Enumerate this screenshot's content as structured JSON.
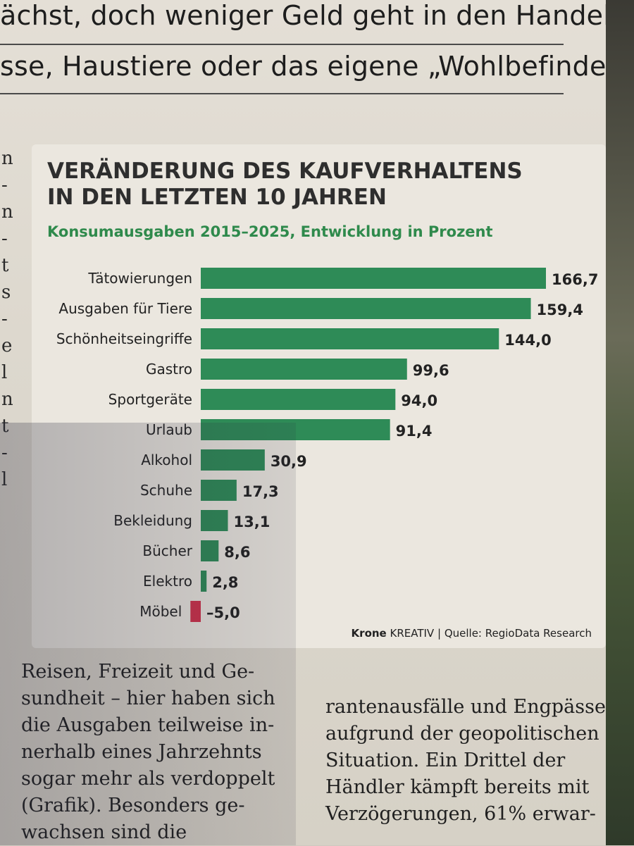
{
  "headline": {
    "line1": "ächst, doch weniger Geld geht in den Handel:",
    "line2": "sse, Haustiere oder das eigene „Wohlbefinden“"
  },
  "left_column_fragments": [
    "n",
    "-",
    "n",
    "-",
    "t",
    "s",
    "-",
    "e",
    "l",
    "n",
    "t",
    "-",
    "l"
  ],
  "chart_data": {
    "type": "bar",
    "orientation": "horizontal",
    "title": "VERÄNDERUNG DES KAUFVERHALTENS IN DEN LETZTEN 10 JAHREN",
    "title_lines": [
      "VERÄNDERUNG DES KAUFVERHALTENS",
      "IN DEN LETZTEN 10 JAHREN"
    ],
    "subtitle": "Konsumausgaben 2015–2025, Entwicklung in Prozent",
    "categories": [
      "Tätowierungen",
      "Ausgaben für Tiere",
      "Schönheitseingriffe",
      "Gastro",
      "Sportgeräte",
      "Urlaub",
      "Alkohol",
      "Schuhe",
      "Bekleidung",
      "Bücher",
      "Elektro",
      "Möbel"
    ],
    "values": [
      166.7,
      159.4,
      144.0,
      99.6,
      94.0,
      91.4,
      30.9,
      17.3,
      13.1,
      8.6,
      2.8,
      -5.0
    ],
    "value_labels": [
      "166,7",
      "159,4",
      "144,0",
      "99,6",
      "94,0",
      "91,4",
      "30,9",
      "17,3",
      "13,1",
      "8,6",
      "2,8",
      "–5,0"
    ],
    "xlim": [
      -5,
      166.7
    ],
    "grid": false,
    "colors": {
      "positive": "#2e8b57",
      "negative": "#d0314a"
    },
    "source_brand_bold": "Krone",
    "source_brand": "KREATIV",
    "source_separator": "|",
    "source": "Quelle: RegioData Research"
  },
  "body_text": {
    "left_lines": [
      "Reisen, Freizeit und Ge-",
      "sundheit – hier haben sich",
      "die Ausgaben teilweise in-",
      "nerhalb eines Jahrzehnts",
      "sogar mehr als verdoppelt",
      "(Grafik). Besonders ge-",
      "wachsen sind die"
    ],
    "right_lines": [
      "rantenausfälle und Engpässe",
      "aufgrund der geopolitischen",
      "Situation. Ein Drittel der",
      "Händler kämpft bereits mit",
      "Verzögerungen, 61% erwar-"
    ]
  }
}
